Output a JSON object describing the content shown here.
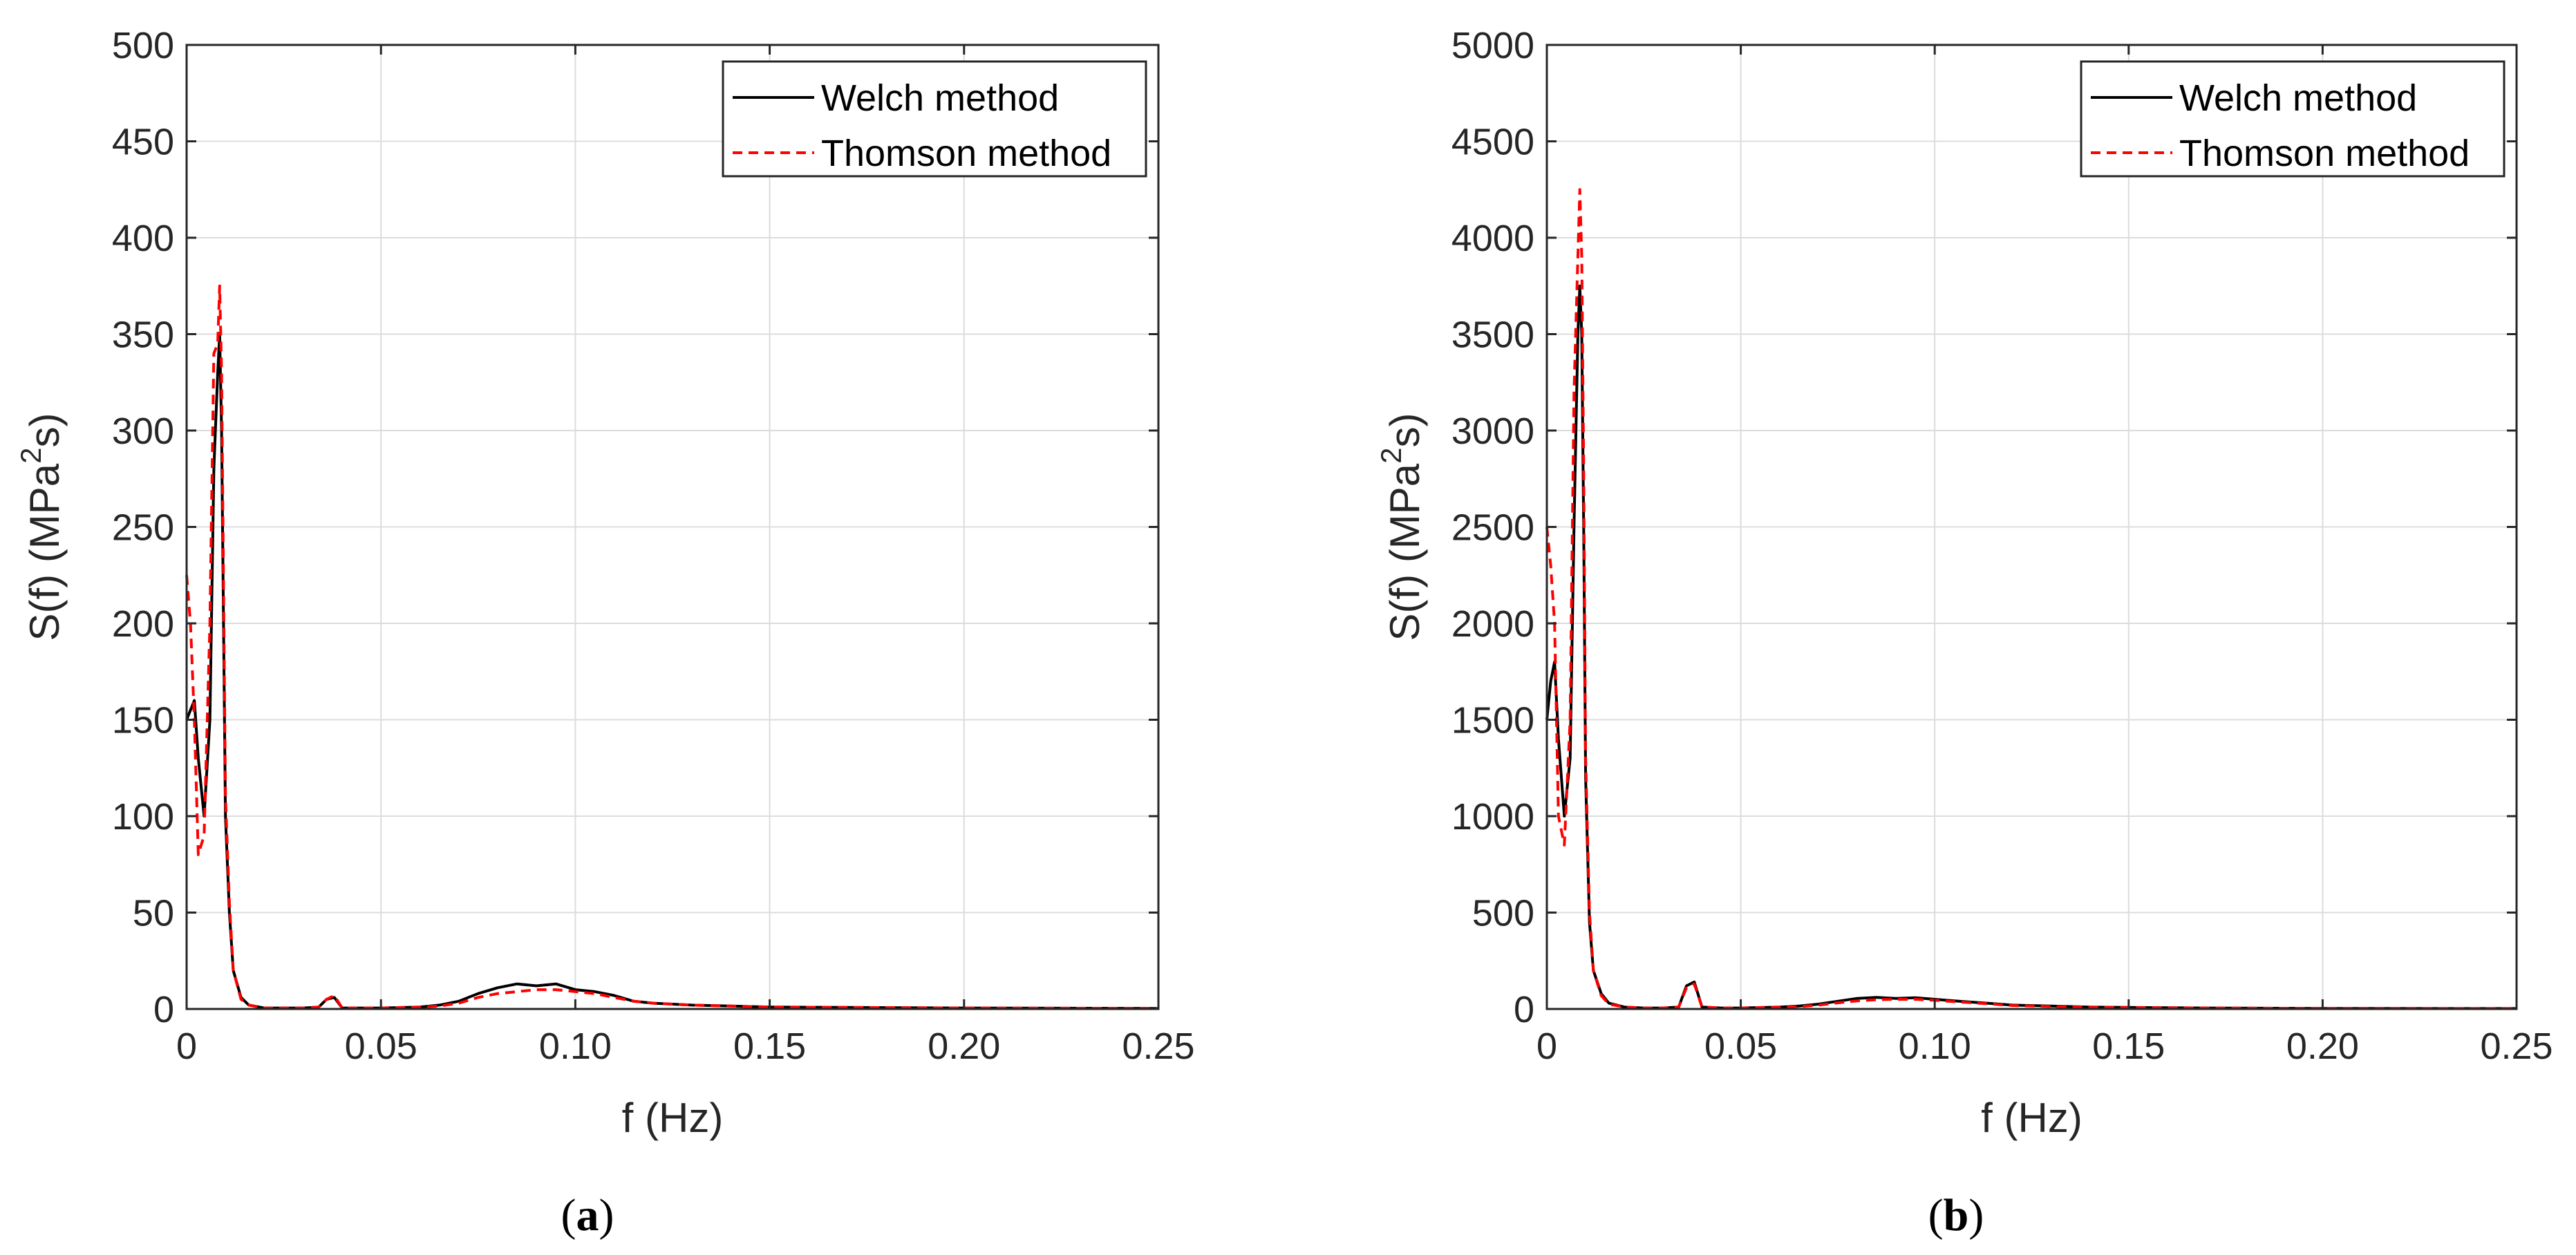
{
  "colors": {
    "welch": "#000000",
    "thomson": "#ff0000",
    "grid": "#dcdcdc",
    "axes": "#262626"
  },
  "chart_data": [
    {
      "type": "line",
      "caption": "a",
      "xlabel": "f (Hz)",
      "ylabel": "S(f) (MPa",
      "ylabel_sup": "2",
      "ylabel_suffix": "s)",
      "xlim": [
        0,
        0.25
      ],
      "ylim": [
        0,
        500
      ],
      "xticks": [
        0,
        0.05,
        0.1,
        0.15,
        0.2,
        0.25
      ],
      "xtick_labels": [
        "0",
        "0.05",
        "0.10",
        "0.15",
        "0.20",
        "0.25"
      ],
      "yticks": [
        0,
        50,
        100,
        150,
        200,
        250,
        300,
        350,
        400,
        450,
        500
      ],
      "ytick_labels": [
        "0",
        "50",
        "100",
        "150",
        "200",
        "250",
        "300",
        "350",
        "400",
        "450",
        "500"
      ],
      "grid": true,
      "legend_position": "top-right",
      "series": [
        {
          "name": "Welch method",
          "style": "solid",
          "x": [
            0,
            0.001,
            0.002,
            0.003,
            0.0045,
            0.006,
            0.007,
            0.008,
            0.0085,
            0.009,
            0.0095,
            0.01,
            0.011,
            0.012,
            0.014,
            0.016,
            0.02,
            0.025,
            0.03,
            0.034,
            0.036,
            0.038,
            0.04,
            0.045,
            0.05,
            0.06,
            0.065,
            0.07,
            0.075,
            0.08,
            0.085,
            0.09,
            0.095,
            0.1,
            0.105,
            0.11,
            0.115,
            0.12,
            0.13,
            0.14,
            0.15,
            0.17,
            0.2,
            0.25
          ],
          "y": [
            150,
            155,
            160,
            130,
            100,
            150,
            280,
            330,
            350,
            300,
            200,
            100,
            50,
            20,
            6,
            2,
            0.5,
            0.5,
            0.5,
            1,
            5,
            6,
            0.5,
            0.5,
            0.5,
            1,
            2,
            4,
            8,
            11,
            13,
            12,
            13,
            10,
            9,
            7,
            4,
            3,
            2,
            1.5,
            1,
            0.8,
            0.5,
            0.3
          ]
        },
        {
          "name": "Thomson method",
          "style": "dashed",
          "x": [
            0,
            0.001,
            0.002,
            0.003,
            0.0045,
            0.006,
            0.007,
            0.008,
            0.0085,
            0.009,
            0.0095,
            0.01,
            0.011,
            0.012,
            0.014,
            0.016,
            0.02,
            0.025,
            0.03,
            0.034,
            0.036,
            0.038,
            0.04,
            0.045,
            0.05,
            0.06,
            0.065,
            0.07,
            0.075,
            0.08,
            0.085,
            0.09,
            0.095,
            0.1,
            0.105,
            0.11,
            0.115,
            0.12,
            0.13,
            0.14,
            0.15,
            0.17,
            0.2,
            0.25
          ],
          "y": [
            225,
            200,
            150,
            80,
            90,
            200,
            340,
            345,
            375,
            330,
            220,
            110,
            55,
            20,
            5,
            2,
            0.5,
            0.5,
            0.5,
            1,
            5,
            7,
            0.5,
            0.5,
            0.5,
            1,
            1.5,
            3,
            6,
            8,
            9,
            10,
            10,
            9,
            8,
            6,
            4,
            3,
            2,
            1.5,
            1,
            0.8,
            0.5,
            0.3
          ]
        }
      ]
    },
    {
      "type": "line",
      "caption": "b",
      "xlabel": "f (Hz)",
      "ylabel": "S(f) (MPa",
      "ylabel_sup": "2",
      "ylabel_suffix": "s)",
      "xlim": [
        0,
        0.25
      ],
      "ylim": [
        0,
        5000
      ],
      "xticks": [
        0,
        0.05,
        0.1,
        0.15,
        0.2,
        0.25
      ],
      "xtick_labels": [
        "0",
        "0.05",
        "0.10",
        "0.15",
        "0.20",
        "0.25"
      ],
      "yticks": [
        0,
        500,
        1000,
        1500,
        2000,
        2500,
        3000,
        3500,
        4000,
        4500,
        5000
      ],
      "ytick_labels": [
        "0",
        "500",
        "1000",
        "1500",
        "2000",
        "2500",
        "3000",
        "3500",
        "4000",
        "4500",
        "5000"
      ],
      "grid": true,
      "legend_position": "top-right",
      "series": [
        {
          "name": "Welch method",
          "style": "solid",
          "x": [
            0,
            0.001,
            0.002,
            0.003,
            0.0045,
            0.006,
            0.007,
            0.008,
            0.0085,
            0.009,
            0.0095,
            0.01,
            0.011,
            0.012,
            0.014,
            0.016,
            0.02,
            0.025,
            0.03,
            0.034,
            0.036,
            0.038,
            0.04,
            0.045,
            0.05,
            0.06,
            0.065,
            0.07,
            0.075,
            0.08,
            0.085,
            0.09,
            0.095,
            0.1,
            0.105,
            0.11,
            0.115,
            0.12,
            0.13,
            0.14,
            0.15,
            0.17,
            0.2,
            0.25
          ],
          "y": [
            1500,
            1700,
            1800,
            1400,
            1000,
            1300,
            2500,
            3500,
            3750,
            3500,
            2500,
            1200,
            450,
            200,
            80,
            30,
            10,
            5,
            5,
            10,
            120,
            140,
            10,
            5,
            5,
            10,
            15,
            25,
            40,
            55,
            60,
            55,
            58,
            50,
            42,
            35,
            28,
            20,
            15,
            10,
            8,
            5,
            3,
            2
          ]
        },
        {
          "name": "Thomson method",
          "style": "dashed",
          "x": [
            0,
            0.001,
            0.002,
            0.003,
            0.0045,
            0.006,
            0.007,
            0.008,
            0.0085,
            0.009,
            0.0095,
            0.01,
            0.011,
            0.012,
            0.014,
            0.016,
            0.02,
            0.025,
            0.03,
            0.034,
            0.036,
            0.038,
            0.04,
            0.045,
            0.05,
            0.06,
            0.065,
            0.07,
            0.075,
            0.08,
            0.085,
            0.09,
            0.095,
            0.1,
            0.105,
            0.11,
            0.115,
            0.12,
            0.13,
            0.14,
            0.15,
            0.17,
            0.2,
            0.25
          ],
          "y": [
            2500,
            2300,
            2000,
            1000,
            850,
            1500,
            3200,
            3900,
            4250,
            3900,
            2800,
            1300,
            500,
            200,
            70,
            25,
            10,
            5,
            5,
            10,
            110,
            130,
            10,
            5,
            5,
            10,
            12,
            20,
            32,
            42,
            48,
            50,
            50,
            45,
            38,
            32,
            25,
            18,
            13,
            9,
            7,
            5,
            3,
            2
          ]
        }
      ]
    }
  ]
}
